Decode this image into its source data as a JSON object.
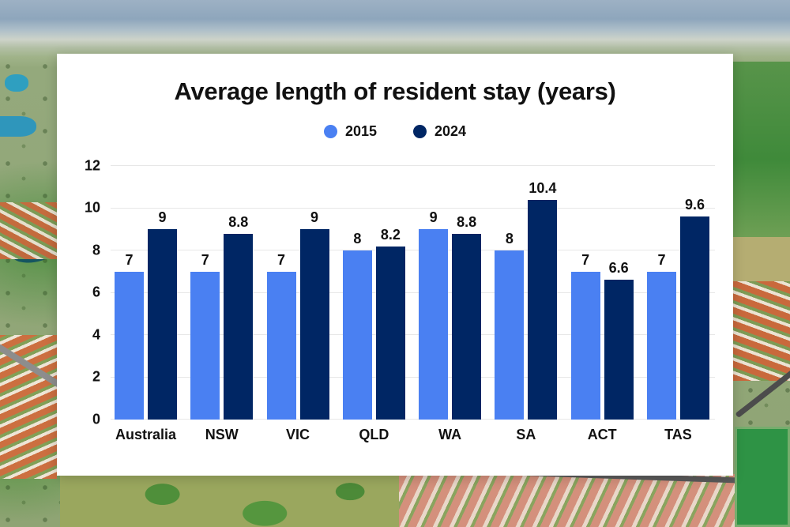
{
  "chart_data": {
    "type": "bar",
    "title": "Average length of resident stay (years)",
    "categories": [
      "Australia",
      "NSW",
      "VIC",
      "QLD",
      "WA",
      "SA",
      "ACT",
      "TAS"
    ],
    "series": [
      {
        "name": "2015",
        "color": "#4a80f2",
        "values": [
          7,
          7,
          7,
          8,
          9,
          8,
          7,
          7
        ]
      },
      {
        "name": "2024",
        "color": "#002664",
        "values": [
          9,
          8.8,
          9,
          8.2,
          8.8,
          10.4,
          6.6,
          9.6
        ]
      }
    ],
    "ylim": [
      0,
      12
    ],
    "yticks": [
      0,
      2,
      4,
      6,
      8,
      10,
      12
    ],
    "grid": true,
    "legend_position": "top",
    "gridline_color": "#e7e7e7",
    "text_color": "#111111",
    "card_background": "#ffffff"
  }
}
